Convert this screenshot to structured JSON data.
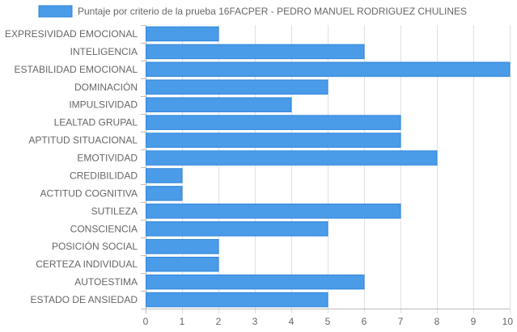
{
  "chart_data": {
    "type": "bar",
    "orientation": "horizontal",
    "legend": {
      "label": "Puntaje por criterio de la prueba 16FACPER - PEDRO MANUEL RODRIGUEZ CHULINES",
      "position": "top"
    },
    "categories": [
      "EXPRESIVIDAD EMOCIONAL",
      "INTELIGENCIA",
      "ESTABILIDAD EMOCIONAL",
      "DOMINACIÓN",
      "IMPULSIVIDAD",
      "LEALTAD GRUPAL",
      "APTITUD SITUACIONAL",
      "EMOTIVIDAD",
      "CREDIBILIDAD",
      "ACTITUD COGNITIVA",
      "SUTILEZA",
      "CONSCIENCIA",
      "POSICIÓN SOCIAL",
      "CERTEZA INDIVIDUAL",
      "AUTOESTIMA",
      "ESTADO DE ANSIEDAD"
    ],
    "series": [
      {
        "name": "Puntaje por criterio de la prueba 16FACPER - PEDRO MANUEL RODRIGUEZ CHULINES",
        "values": [
          2,
          6,
          10,
          5,
          4,
          7,
          7,
          8,
          1,
          1,
          7,
          5,
          2,
          2,
          6,
          5
        ]
      }
    ],
    "xlim": [
      0,
      10
    ],
    "x_ticks": [
      0,
      1,
      2,
      3,
      4,
      5,
      6,
      7,
      8,
      9,
      10
    ],
    "grid": true,
    "colors": {
      "bar_fill": "#4a9be8",
      "bar_stroke": "#2f86dc",
      "grid": "#e0e0e0",
      "axis": "#bdbdbd",
      "text": "#666666"
    }
  }
}
